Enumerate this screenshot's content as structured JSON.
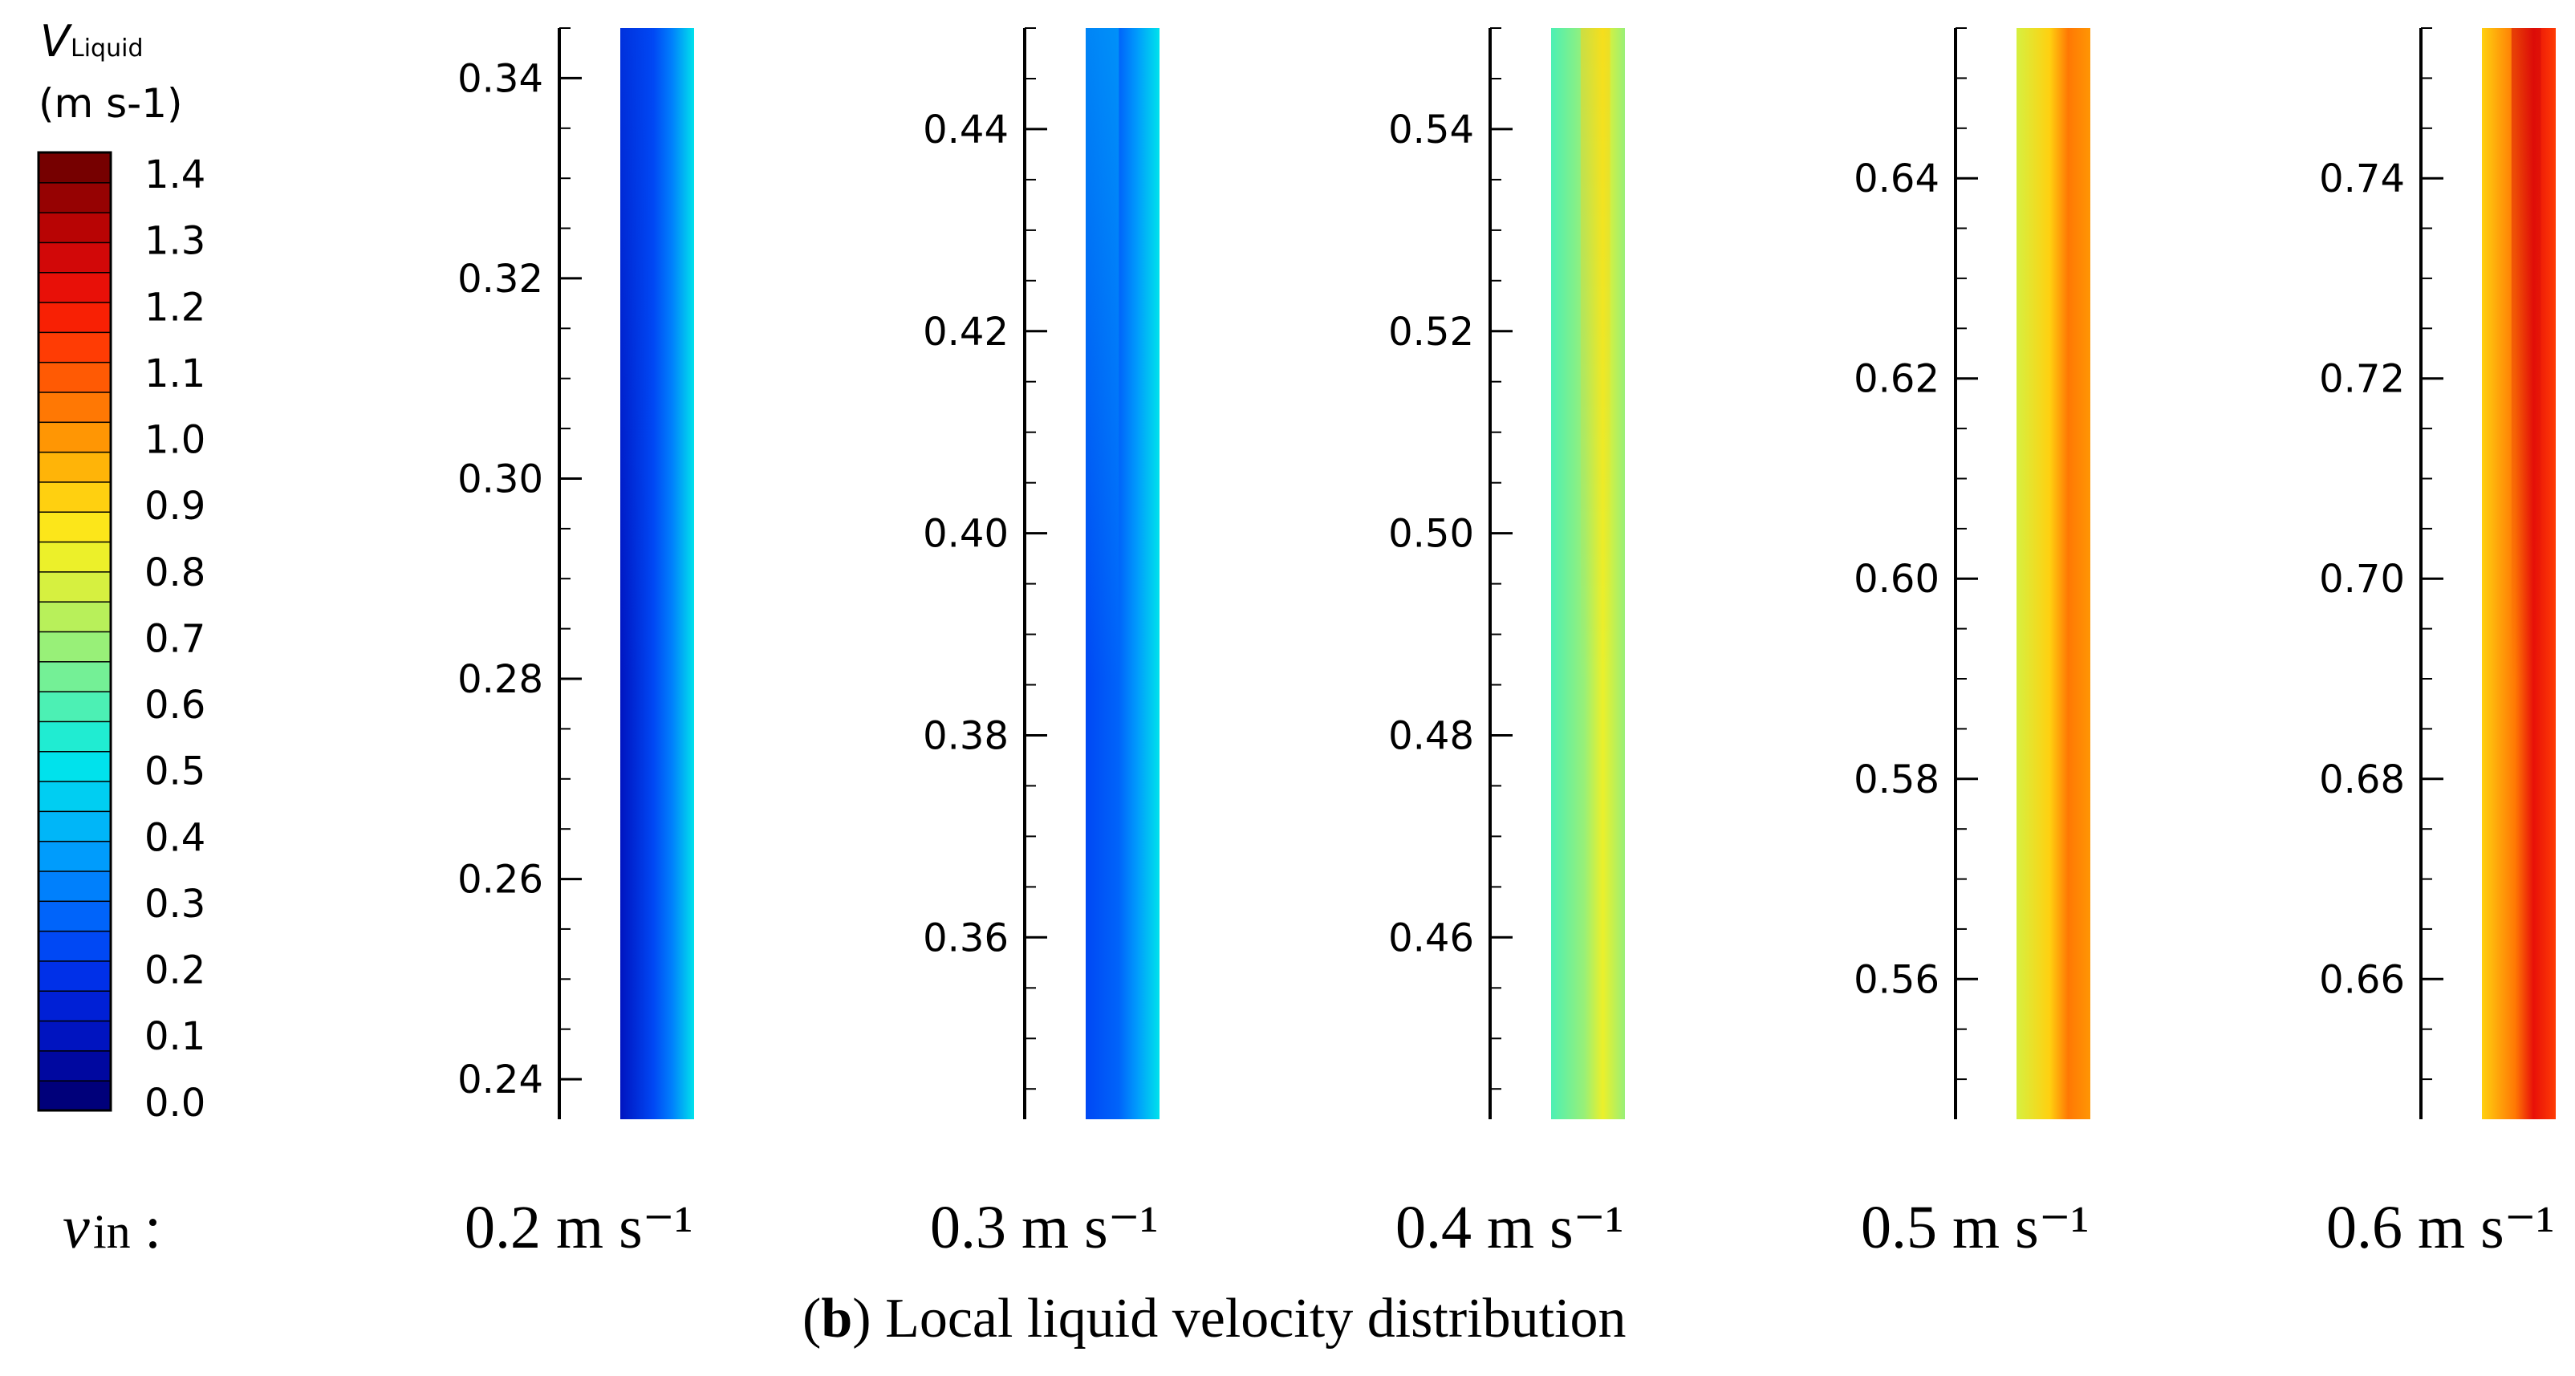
{
  "legend": {
    "symbol": "V",
    "subscript": "Liquid",
    "unit": "(m s-1)",
    "min": 0.0,
    "max": 1.4,
    "step": 0.05,
    "labels": [
      "0.0",
      "0.1",
      "0.2",
      "0.3",
      "0.4",
      "0.5",
      "0.6",
      "0.7",
      "0.8",
      "0.9",
      "1.0",
      "1.1",
      "1.2",
      "1.3",
      "1.4"
    ],
    "colors": [
      "#00007a",
      "#0008a0",
      "#0014c0",
      "#0020d6",
      "#0030e8",
      "#0048f4",
      "#0064fa",
      "#0080fc",
      "#009cfc",
      "#00b6f8",
      "#00cef2",
      "#00e2ec",
      "#20ecd2",
      "#4cf0b4",
      "#74f096",
      "#98f078",
      "#b8f05a",
      "#d6f040",
      "#ecf02a",
      "#fce61a",
      "#ffd010",
      "#ffb408",
      "#ff9604",
      "#ff7804",
      "#ff5a04",
      "#ff3c04",
      "#f82004",
      "#e81008",
      "#d20808",
      "#b80404",
      "#960202",
      "#760000"
    ]
  },
  "vin_label": "v",
  "vin_subscript": "in",
  "vin_colon": ":",
  "caption": {
    "panel_letter": "b",
    "open": "(",
    "close": ")",
    "text": " Local liquid velocity distribution"
  },
  "chart_data": {
    "type": "heatmap",
    "title": "",
    "xlabel": "",
    "ylabel": "",
    "colorbar_label": "V Liquid (m s-1)",
    "colorbar_range": [
      0.0,
      1.4
    ],
    "panels": [
      {
        "inlet_velocity": "0.2 m s⁻¹",
        "y_range": [
          0.236,
          0.345
        ],
        "y_ticks": [
          "0.24",
          "0.26",
          "0.28",
          "0.30",
          "0.32",
          "0.34"
        ],
        "velocity_left_wall": 0.15,
        "velocity_right_wall": 0.55,
        "velocity_left_wall_top": 0.25
      },
      {
        "inlet_velocity": "0.3 m s⁻¹",
        "y_range": [
          0.342,
          0.45
        ],
        "y_ticks": [
          "0.36",
          "0.38",
          "0.40",
          "0.42",
          "0.44"
        ],
        "velocity_left_wall": 0.25,
        "velocity_right_wall": 0.6,
        "velocity_left_wall_top": 0.45,
        "velocity_right_wall_top": 0.75
      },
      {
        "inlet_velocity": "0.4 m s⁻¹",
        "y_range": [
          0.442,
          0.55
        ],
        "y_ticks": [
          "0.46",
          "0.48",
          "0.50",
          "0.52",
          "0.54"
        ],
        "velocity_left_wall": 0.65,
        "velocity_center": 0.9,
        "velocity_center_top": 1.0,
        "velocity_right_wall": 0.75
      },
      {
        "inlet_velocity": "0.5 m s⁻¹",
        "y_range": [
          0.546,
          0.655
        ],
        "y_ticks": [
          "0.56",
          "0.58",
          "0.60",
          "0.62",
          "0.64"
        ],
        "velocity_left_wall": 0.85,
        "velocity_center": 1.2,
        "velocity_right_wall": 1.15
      },
      {
        "inlet_velocity": "0.6 m s⁻¹",
        "y_range": [
          0.646,
          0.755
        ],
        "y_ticks": [
          "0.66",
          "0.68",
          "0.70",
          "0.72",
          "0.74"
        ],
        "velocity_left_wall": 1.0,
        "velocity_center": 1.35,
        "velocity_center_top": 1.45,
        "velocity_right_wall": 1.25
      }
    ]
  }
}
